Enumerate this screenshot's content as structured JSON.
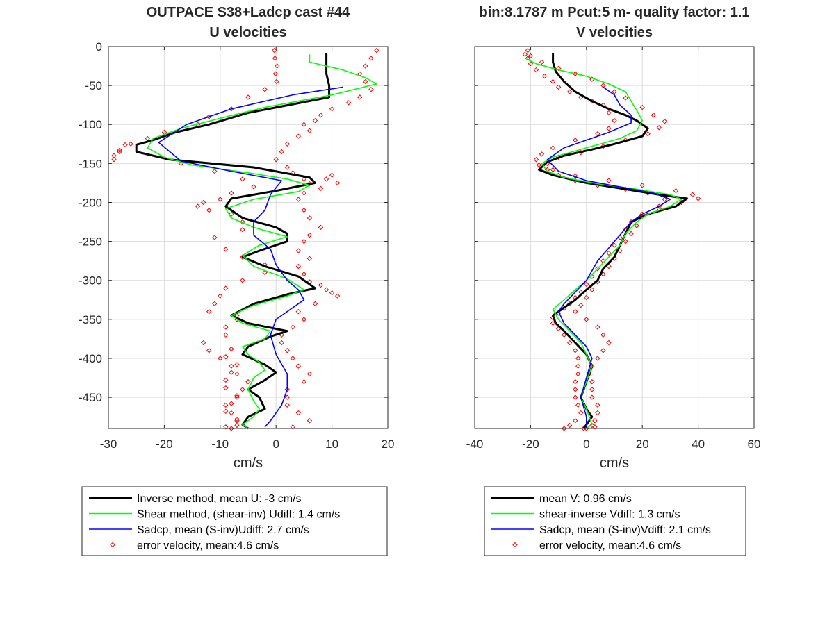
{
  "chart_data": [
    {
      "type": "line",
      "title": [
        "OUTPACE S38+Ladcp cast #44",
        "U velocities"
      ],
      "xlabel": "cm/s",
      "ylabel": "",
      "xlim": [
        -30,
        20
      ],
      "ylim": [
        -490,
        0
      ],
      "xticks": [
        "-30",
        "-20",
        "-10",
        "0",
        "10",
        "20"
      ],
      "yticks": [
        "0",
        "-50",
        "-100",
        "-150",
        "-200",
        "-250",
        "-300",
        "-350",
        "-400",
        "-450"
      ],
      "grid": true,
      "legend_position": "below",
      "colors": {
        "inverse": "#000000",
        "shear": "#00ff00",
        "sadcp": "#0000ff",
        "error": "#ff0000"
      },
      "series": [
        {
          "name": "Inverse method, mean U:  -3 cm/s",
          "key": "inverse",
          "x": [
            9,
            9,
            9,
            9.5,
            9.5,
            -5,
            -12,
            -18,
            -22,
            -25,
            -25,
            -19,
            -4,
            6,
            7,
            0,
            -8,
            -9,
            -6,
            0,
            2,
            2,
            -3,
            -6,
            -2,
            4,
            7,
            2,
            -4,
            -8,
            -5,
            2,
            -1,
            -5,
            -6,
            -2,
            0,
            -2,
            -5,
            -3,
            -2,
            -5,
            -6,
            -5
          ],
          "y": [
            -8,
            -20,
            -35,
            -50,
            -65,
            -85,
            -100,
            -110,
            -120,
            -126,
            -135,
            -145,
            -155,
            -168,
            -175,
            -185,
            -195,
            -205,
            -220,
            -232,
            -240,
            -250,
            -262,
            -270,
            -282,
            -295,
            -310,
            -318,
            -330,
            -345,
            -355,
            -365,
            -372,
            -385,
            -395,
            -408,
            -418,
            -428,
            -440,
            -450,
            -465,
            -475,
            -485,
            -490
          ]
        },
        {
          "name": "Shear method, (shear-inv)  Udiff:  1.4 cm/s",
          "key": "shear",
          "x": [
            6,
            6,
            12,
            16,
            18,
            10,
            -2,
            -10,
            -17,
            -22,
            -23,
            -20,
            -15,
            -5,
            2,
            6,
            4,
            -4,
            -9,
            -8,
            -4,
            2,
            -3,
            -6,
            -4,
            2,
            5,
            2,
            -4,
            -8,
            -6,
            -1,
            -2,
            -6,
            -5,
            -3,
            -2,
            -4,
            -5,
            -4,
            -3,
            -4,
            -6,
            -5
          ],
          "y": [
            -10,
            -20,
            -30,
            -40,
            -48,
            -62,
            -78,
            -92,
            -105,
            -118,
            -130,
            -142,
            -152,
            -162,
            -170,
            -178,
            -186,
            -196,
            -208,
            -220,
            -232,
            -244,
            -255,
            -268,
            -282,
            -298,
            -312,
            -320,
            -332,
            -345,
            -355,
            -365,
            -375,
            -385,
            -395,
            -405,
            -415,
            -425,
            -440,
            -455,
            -465,
            -475,
            -485,
            -490
          ]
        },
        {
          "name": "Sadcp, mean (S-inv)Udiff: 2.7 cm/s",
          "key": "sadcp",
          "x": [
            12,
            3,
            -8,
            -16,
            -21,
            -17,
            -8,
            1,
            -1,
            -2,
            -4,
            -4,
            -1,
            0,
            2,
            4,
            5,
            3,
            0,
            -1,
            0,
            2,
            2,
            1,
            -1,
            -2
          ],
          "y": [
            -52,
            -62,
            -80,
            -100,
            -123,
            -147,
            -160,
            -172,
            -190,
            -210,
            -225,
            -242,
            -260,
            -280,
            -300,
            -312,
            -325,
            -335,
            -350,
            -370,
            -395,
            -420,
            -440,
            -460,
            -480,
            -488
          ]
        },
        {
          "name": "error velocity, mean:4.6 cm/s",
          "key": "error",
          "x": [
            -0.3,
            -0.2,
            0.2,
            -0.1,
            0.1,
            -2,
            -5,
            -8,
            -12,
            -14,
            -20,
            -23,
            -27,
            -28,
            -29,
            -29,
            -28,
            -26,
            -17,
            -11,
            -6,
            -4,
            -8,
            -10,
            -13,
            -14,
            -12,
            -8,
            -6,
            -6,
            -11,
            -9,
            -6,
            -2,
            -2,
            -6,
            -9,
            -10,
            -11,
            -12,
            -7,
            -7,
            -9,
            -9,
            -13,
            -12,
            -10,
            -8,
            -7,
            -5,
            -6,
            -7,
            -9,
            -8,
            -7,
            -7,
            -9,
            -8,
            -7,
            -9,
            -8,
            -7,
            -9,
            -9,
            -8,
            -7,
            -9,
            -8
          ],
          "y": [
            -5,
            -15,
            -25,
            -35,
            -45,
            -55,
            -65,
            -80,
            -90,
            -100,
            -110,
            -118,
            -126,
            -133,
            -140,
            -145,
            -135,
            -125,
            -150,
            -160,
            -170,
            -180,
            -188,
            -196,
            -200,
            -205,
            -210,
            -215,
            -225,
            -235,
            -245,
            -260,
            -270,
            -280,
            -290,
            -300,
            -310,
            -320,
            -330,
            -340,
            -345,
            -350,
            -360,
            -370,
            -380,
            -390,
            -400,
            -410,
            -420,
            -430,
            -440,
            -450,
            -460,
            -470,
            -480,
            -486,
            -488,
            -490,
            -478,
            -468,
            -458,
            -448,
            -438,
            -428,
            -418,
            -408,
            -398,
            -388
          ]
        },
        {
          "name": "",
          "key": "error",
          "x": [
            18,
            17,
            16,
            15,
            16,
            17,
            15,
            13,
            10,
            8,
            7,
            5,
            6,
            4,
            2,
            1,
            0,
            2,
            3,
            5,
            6,
            8,
            9,
            10,
            11,
            5,
            4,
            5,
            6,
            8,
            6,
            5,
            4,
            6,
            4,
            5,
            6,
            8,
            9,
            10,
            11,
            7,
            4,
            5,
            3,
            1,
            1,
            2,
            3,
            4,
            6,
            5,
            2,
            2,
            2,
            4,
            6,
            3
          ],
          "y": [
            -5,
            -15,
            -25,
            -35,
            -45,
            -55,
            -65,
            -72,
            -80,
            -88,
            -95,
            -100,
            -108,
            -115,
            -125,
            -135,
            -145,
            -155,
            -162,
            -170,
            -176,
            -182,
            -170,
            -165,
            -175,
            -188,
            -196,
            -210,
            -220,
            -232,
            -242,
            -250,
            -262,
            -272,
            -282,
            -292,
            -302,
            -306,
            -312,
            -316,
            -320,
            -330,
            -340,
            -350,
            -360,
            -370,
            -380,
            -390,
            -400,
            -410,
            -420,
            -430,
            -440,
            -450,
            -460,
            -470,
            -480,
            -488
          ]
        }
      ]
    },
    {
      "type": "line",
      "title": [
        "bin:8.1787 m  Pcut:5 m- quality factor:  1.1",
        "V velocities"
      ],
      "xlabel": "cm/s",
      "ylabel": "",
      "xlim": [
        -40,
        60
      ],
      "ylim": [
        -490,
        0
      ],
      "xticks": [
        "-40",
        "-20",
        "0",
        "20",
        "40",
        "60"
      ],
      "yticks": [],
      "grid": true,
      "legend_position": "below",
      "colors": {
        "inverse": "#000000",
        "shear": "#00ff00",
        "sadcp": "#0000ff",
        "error": "#ff0000"
      },
      "series": [
        {
          "name": "mean V:  0.96 cm/s",
          "key": "inverse",
          "x": [
            -12,
            -12,
            -11,
            -8,
            -4,
            2,
            8,
            14,
            18,
            22,
            20,
            10,
            2,
            -8,
            -14,
            -17,
            -12,
            0,
            14,
            26,
            36,
            32,
            22,
            16,
            14,
            12,
            10,
            6,
            4,
            0,
            -4,
            -8,
            -12,
            -11,
            -8,
            -4,
            0,
            2,
            0,
            -2,
            0,
            2,
            0,
            -1
          ],
          "y": [
            -8,
            -20,
            -32,
            -45,
            -58,
            -70,
            -80,
            -88,
            -95,
            -105,
            -115,
            -125,
            -132,
            -140,
            -148,
            -158,
            -165,
            -175,
            -183,
            -190,
            -195,
            -205,
            -215,
            -225,
            -240,
            -255,
            -270,
            -285,
            -300,
            -312,
            -325,
            -335,
            -345,
            -355,
            -365,
            -380,
            -395,
            -410,
            -430,
            -450,
            -465,
            -475,
            -485,
            -490
          ]
        },
        {
          "name": "shear-inverse Vdiff:  1.3 cm/s",
          "key": "shear",
          "x": [
            -22,
            -18,
            -10,
            0,
            8,
            14,
            16,
            18,
            20,
            18,
            12,
            4,
            -4,
            -12,
            -16,
            -14,
            -8,
            4,
            18,
            30,
            34,
            30,
            22,
            18,
            14,
            12,
            8,
            4,
            0,
            -4,
            -8,
            -12,
            -10,
            -6,
            -2,
            0,
            2,
            0,
            -2,
            0,
            1,
            2,
            0
          ],
          "y": [
            -15,
            -22,
            -30,
            -38,
            -48,
            -58,
            -70,
            -82,
            -95,
            -108,
            -118,
            -126,
            -134,
            -142,
            -150,
            -160,
            -168,
            -176,
            -183,
            -190,
            -196,
            -205,
            -215,
            -225,
            -240,
            -255,
            -270,
            -285,
            -300,
            -312,
            -325,
            -337,
            -350,
            -365,
            -380,
            -395,
            -410,
            -430,
            -450,
            -465,
            -475,
            -485,
            -490
          ]
        },
        {
          "name": "Sadcp, mean (S-inv)Vdiff: 2.1 cm/s",
          "key": "sadcp",
          "x": [
            6,
            10,
            12,
            16,
            16,
            8,
            0,
            -8,
            -14,
            -10,
            0,
            12,
            24,
            30,
            26,
            20,
            16,
            10,
            4,
            0,
            -4,
            -8,
            -10,
            -8,
            -4,
            0,
            2,
            0,
            -2,
            0,
            0
          ],
          "y": [
            -52,
            -62,
            -75,
            -88,
            -98,
            -110,
            -120,
            -130,
            -145,
            -160,
            -172,
            -180,
            -188,
            -196,
            -205,
            -215,
            -225,
            -250,
            -275,
            -300,
            -315,
            -330,
            -340,
            -355,
            -370,
            -385,
            -400,
            -425,
            -450,
            -475,
            -490
          ]
        },
        {
          "name": "error velocity, mean:4.6 cm/s",
          "key": "error",
          "x": [
            -22,
            -21,
            -20,
            -18,
            -15,
            -12,
            -10,
            -6,
            -2,
            2,
            6,
            8,
            10,
            8,
            4,
            -4,
            -12,
            -16,
            -18,
            -17,
            -14,
            -10,
            -4,
            4,
            14,
            22,
            28,
            26,
            20,
            16,
            14,
            12,
            10,
            8,
            6,
            4,
            2,
            0,
            -2,
            -4,
            -6,
            -8,
            -10,
            -12,
            -12,
            -10,
            -8,
            -6,
            -4,
            -3,
            -3,
            -3,
            -4,
            -4,
            -4,
            -3,
            -2,
            -4,
            -6,
            -8
          ],
          "y": [
            -10,
            -15,
            -22,
            -30,
            -38,
            -45,
            -52,
            -58,
            -65,
            -70,
            -75,
            -85,
            -95,
            -105,
            -112,
            -120,
            -130,
            -138,
            -145,
            -152,
            -158,
            -165,
            -172,
            -178,
            -183,
            -188,
            -196,
            -205,
            -215,
            -225,
            -235,
            -245,
            -255,
            -265,
            -275,
            -285,
            -295,
            -305,
            -315,
            -322,
            -330,
            -336,
            -342,
            -348,
            -355,
            -362,
            -370,
            -380,
            -390,
            -400,
            -410,
            -420,
            -430,
            -440,
            -450,
            -460,
            -470,
            -480,
            -486,
            -490
          ]
        },
        {
          "name": "",
          "key": "error",
          "x": [
            -21,
            -20,
            -16,
            -10,
            -4,
            2,
            6,
            10,
            14,
            20,
            24,
            28,
            26,
            22,
            14,
            6,
            -2,
            -10,
            -14,
            -12,
            -4,
            8,
            20,
            32,
            38,
            40,
            34,
            26,
            20,
            18,
            16,
            14,
            12,
            10,
            8,
            6,
            4,
            2,
            0,
            -2,
            -4,
            0,
            4,
            6,
            8,
            6,
            4,
            2,
            1,
            2,
            2,
            2,
            4,
            4,
            3,
            2,
            3,
            0,
            -1
          ],
          "y": [
            -5,
            -12,
            -20,
            -28,
            -35,
            -42,
            -50,
            -58,
            -66,
            -78,
            -88,
            -96,
            -104,
            -112,
            -120,
            -128,
            -136,
            -142,
            -150,
            -158,
            -166,
            -172,
            -178,
            -185,
            -190,
            -195,
            -200,
            -208,
            -218,
            -230,
            -240,
            -250,
            -262,
            -272,
            -282,
            -292,
            -302,
            -312,
            -322,
            -332,
            -340,
            -350,
            -360,
            -370,
            -380,
            -390,
            -400,
            -410,
            -420,
            -430,
            -440,
            -450,
            -460,
            -470,
            -480,
            -486,
            -488,
            -490,
            -490
          ]
        }
      ]
    }
  ],
  "legends": [
    {
      "items": [
        {
          "key": "inverse",
          "label": "Inverse method, mean U:  -3 cm/s"
        },
        {
          "key": "shear",
          "label": "Shear method, (shear-inv)  Udiff:  1.4 cm/s"
        },
        {
          "key": "sadcp",
          "label": "Sadcp, mean (S-inv)Udiff: 2.7 cm/s"
        },
        {
          "key": "error",
          "label": "error velocity, mean:4.6 cm/s"
        }
      ]
    },
    {
      "items": [
        {
          "key": "inverse",
          "label": "mean V:  0.96 cm/s"
        },
        {
          "key": "shear",
          "label": "shear-inverse Vdiff:  1.3 cm/s"
        },
        {
          "key": "sadcp",
          "label": "Sadcp, mean (S-inv)Vdiff: 2.1 cm/s"
        },
        {
          "key": "error",
          "label": "error velocity, mean:4.6 cm/s"
        }
      ]
    }
  ]
}
